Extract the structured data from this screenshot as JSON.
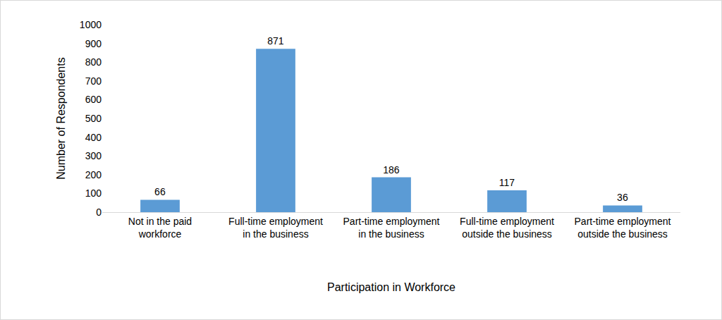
{
  "chart_data": {
    "type": "bar",
    "x_label": "Participation in Workforce",
    "y_label": "Number of Respondents",
    "categories": [
      "Not in the paid workforce",
      "Full-time employment in the business",
      "Part-time employment in the business",
      "Full-time employment outside the business",
      "Part-time employment outside the business"
    ],
    "values": [
      66,
      871,
      186,
      117,
      36
    ],
    "color": "#5b9bd5",
    "ylim": [
      0,
      1000
    ],
    "yticks": [
      0,
      100,
      200,
      300,
      400,
      500,
      600,
      700,
      800,
      900,
      1000
    ],
    "grid": false,
    "data_labels": true
  }
}
